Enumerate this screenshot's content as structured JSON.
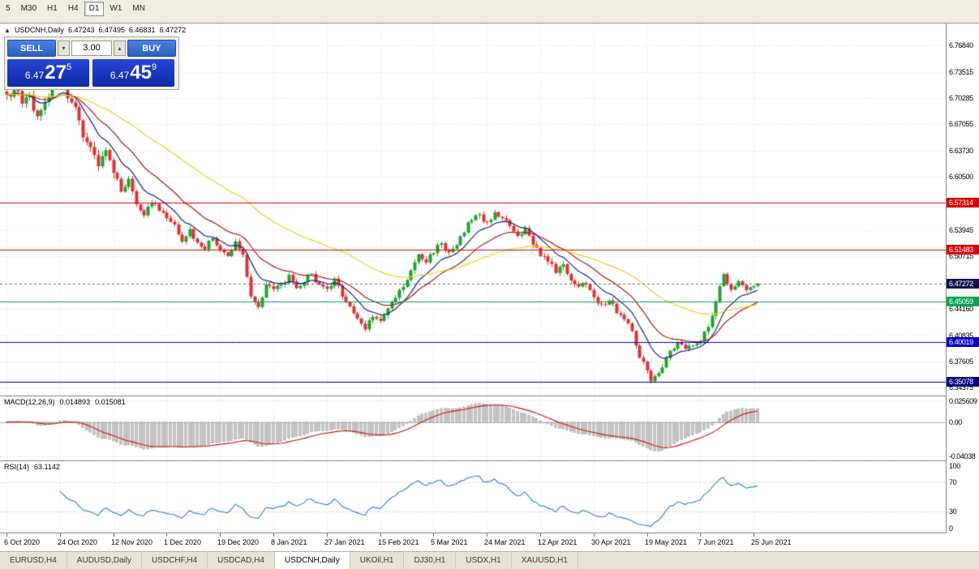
{
  "toolbar": {
    "timeframes": [
      "5",
      "M30",
      "H1",
      "H4",
      "D1",
      "W1",
      "MN"
    ],
    "active": "D1"
  },
  "info_line": {
    "symbol": "USDCNH,Daily",
    "open": "6.47243",
    "high": "6.47495",
    "low": "6.46831",
    "close": "6.47272"
  },
  "trade_panel": {
    "sell_label": "SELL",
    "buy_label": "BUY",
    "volume": "3.00",
    "sell_price": {
      "main": "6.47",
      "pips": "27",
      "pipette": "5"
    },
    "buy_price": {
      "main": "6.47",
      "pips": "45",
      "pipette": "9"
    }
  },
  "price_scale": {
    "regular_labels": [
      "6.76840",
      "6.73515",
      "6.70285",
      "6.67055",
      "6.63730",
      "6.60500",
      "6.53945",
      "6.50715",
      "6.44160",
      "6.40835",
      "6.37605",
      "6.34375"
    ],
    "range": {
      "top": 6.7956,
      "bottom": 6.3337
    }
  },
  "levels": [
    {
      "price": 6.57314,
      "label": "6.57314",
      "color": "#dd0000",
      "type": "resistance"
    },
    {
      "price": 6.51483,
      "label": "6.51483",
      "color": "#dd0000",
      "type": "resistance"
    },
    {
      "price": 6.47272,
      "label": "6.47272",
      "color": "#11114e",
      "type": "current"
    },
    {
      "price": 6.45059,
      "label": "6.45059",
      "color": "#00a651",
      "type": "support"
    },
    {
      "price": 6.40019,
      "label": "6.40019",
      "color": "#0000cc",
      "type": "support"
    },
    {
      "price": 6.35078,
      "label": "6.35078",
      "color": "#000080",
      "type": "support"
    }
  ],
  "dates": [
    "6 Oct 2020",
    "24 Oct 2020",
    "12 Nov 2020",
    "1 Dec 2020",
    "19 Dec 2020",
    "8 Jan 2021",
    "27 Jan 2021",
    "15 Feb 2021",
    "5 Mar 2021",
    "24 Mar 2021",
    "12 Apr 2021",
    "30 Apr 2021",
    "19 May 2021",
    "7 Jun 2021",
    "25 Jun 2021"
  ],
  "macd": {
    "title": "MACD(12,26,9)",
    "value_main": "0.014893",
    "value_signal": "0.015081",
    "scale_top": "0.025609",
    "scale_zero": "0.00",
    "scale_bottom": "-0.04038",
    "range": {
      "top": 0.03,
      "bottom": -0.045
    }
  },
  "rsi": {
    "title": "RSI(14)",
    "value": "63.1142",
    "scale": [
      "100",
      "70",
      "30",
      "0"
    ],
    "levels": [
      70,
      30
    ]
  },
  "tabs": [
    "EURUSD,H4",
    "AUDUSD,Daily",
    "USDCHF,H4",
    "USDCAD,H4",
    "USDCNH,Daily",
    "UKOil,H1",
    "DJ30,H1",
    "USDX,H1",
    "XAUUSD,H1"
  ],
  "active_tab": "USDCNH,Daily",
  "chart_data": {
    "type": "candlestick",
    "symbol": "USDCNH",
    "timeframe": "Daily",
    "bars": 198,
    "bars_per_label": 14,
    "close_anchors": [
      [
        0,
        6.712
      ],
      [
        1,
        6.7
      ],
      [
        2,
        6.722
      ],
      [
        4,
        6.694
      ],
      [
        6,
        6.705
      ],
      [
        8,
        6.678
      ],
      [
        10,
        6.701
      ],
      [
        12,
        6.713
      ],
      [
        14,
        6.728
      ],
      [
        16,
        6.698
      ],
      [
        18,
        6.688
      ],
      [
        20,
        6.659
      ],
      [
        22,
        6.641
      ],
      [
        24,
        6.622
      ],
      [
        26,
        6.639
      ],
      [
        28,
        6.607
      ],
      [
        30,
        6.59
      ],
      [
        32,
        6.601
      ],
      [
        34,
        6.573
      ],
      [
        36,
        6.559
      ],
      [
        38,
        6.574
      ],
      [
        40,
        6.563
      ],
      [
        42,
        6.554
      ],
      [
        44,
        6.543
      ],
      [
        46,
        6.528
      ],
      [
        48,
        6.538
      ],
      [
        50,
        6.523
      ],
      [
        52,
        6.518
      ],
      [
        54,
        6.529
      ],
      [
        56,
        6.514
      ],
      [
        58,
        6.505
      ],
      [
        60,
        6.524
      ],
      [
        62,
        6.509
      ],
      [
        64,
        6.458
      ],
      [
        66,
        6.443
      ],
      [
        68,
        6.474
      ],
      [
        70,
        6.464
      ],
      [
        72,
        6.471
      ],
      [
        74,
        6.481
      ],
      [
        76,
        6.464
      ],
      [
        78,
        6.476
      ],
      [
        80,
        6.486
      ],
      [
        82,
        6.469
      ],
      [
        84,
        6.464
      ],
      [
        86,
        6.476
      ],
      [
        88,
        6.459
      ],
      [
        90,
        6.444
      ],
      [
        92,
        6.428
      ],
      [
        94,
        6.418
      ],
      [
        96,
        6.434
      ],
      [
        98,
        6.424
      ],
      [
        100,
        6.441
      ],
      [
        102,
        6.456
      ],
      [
        104,
        6.469
      ],
      [
        106,
        6.487
      ],
      [
        108,
        6.509
      ],
      [
        110,
        6.499
      ],
      [
        112,
        6.514
      ],
      [
        114,
        6.524
      ],
      [
        116,
        6.509
      ],
      [
        118,
        6.519
      ],
      [
        120,
        6.539
      ],
      [
        122,
        6.553
      ],
      [
        124,
        6.559
      ],
      [
        126,
        6.546
      ],
      [
        128,
        6.563
      ],
      [
        130,
        6.553
      ],
      [
        132,
        6.543
      ],
      [
        134,
        6.529
      ],
      [
        136,
        6.539
      ],
      [
        138,
        6.524
      ],
      [
        140,
        6.509
      ],
      [
        142,
        6.499
      ],
      [
        144,
        6.489
      ],
      [
        146,
        6.494
      ],
      [
        148,
        6.479
      ],
      [
        150,
        6.469
      ],
      [
        152,
        6.474
      ],
      [
        154,
        6.459
      ],
      [
        156,
        6.444
      ],
      [
        158,
        6.453
      ],
      [
        160,
        6.439
      ],
      [
        162,
        6.429
      ],
      [
        164,
        6.414
      ],
      [
        166,
        6.384
      ],
      [
        168,
        6.363
      ],
      [
        169,
        6.354
      ],
      [
        170,
        6.36
      ],
      [
        172,
        6.369
      ],
      [
        174,
        6.388
      ],
      [
        176,
        6.398
      ],
      [
        178,
        6.392
      ],
      [
        180,
        6.399
      ],
      [
        182,
        6.404
      ],
      [
        184,
        6.419
      ],
      [
        186,
        6.452
      ],
      [
        188,
        6.484
      ],
      [
        190,
        6.464
      ],
      [
        192,
        6.476
      ],
      [
        194,
        6.466
      ],
      [
        196,
        6.469
      ],
      [
        197,
        6.47272
      ]
    ],
    "moving_averages": [
      {
        "type": "ema",
        "period": 10,
        "color": "#16247c"
      },
      {
        "type": "ema",
        "period": 21,
        "color": "#b01616"
      },
      {
        "type": "ema",
        "period": 55,
        "color": "#e8d51e"
      }
    ],
    "indicators": [
      {
        "name": "MACD",
        "params": [
          12,
          26,
          9
        ]
      },
      {
        "name": "RSI",
        "params": [
          14
        ]
      }
    ],
    "colors": {
      "up": "#1fa32e",
      "down": "#e03131",
      "background": "#ffffff",
      "grid": "#dcdcdc"
    }
  }
}
